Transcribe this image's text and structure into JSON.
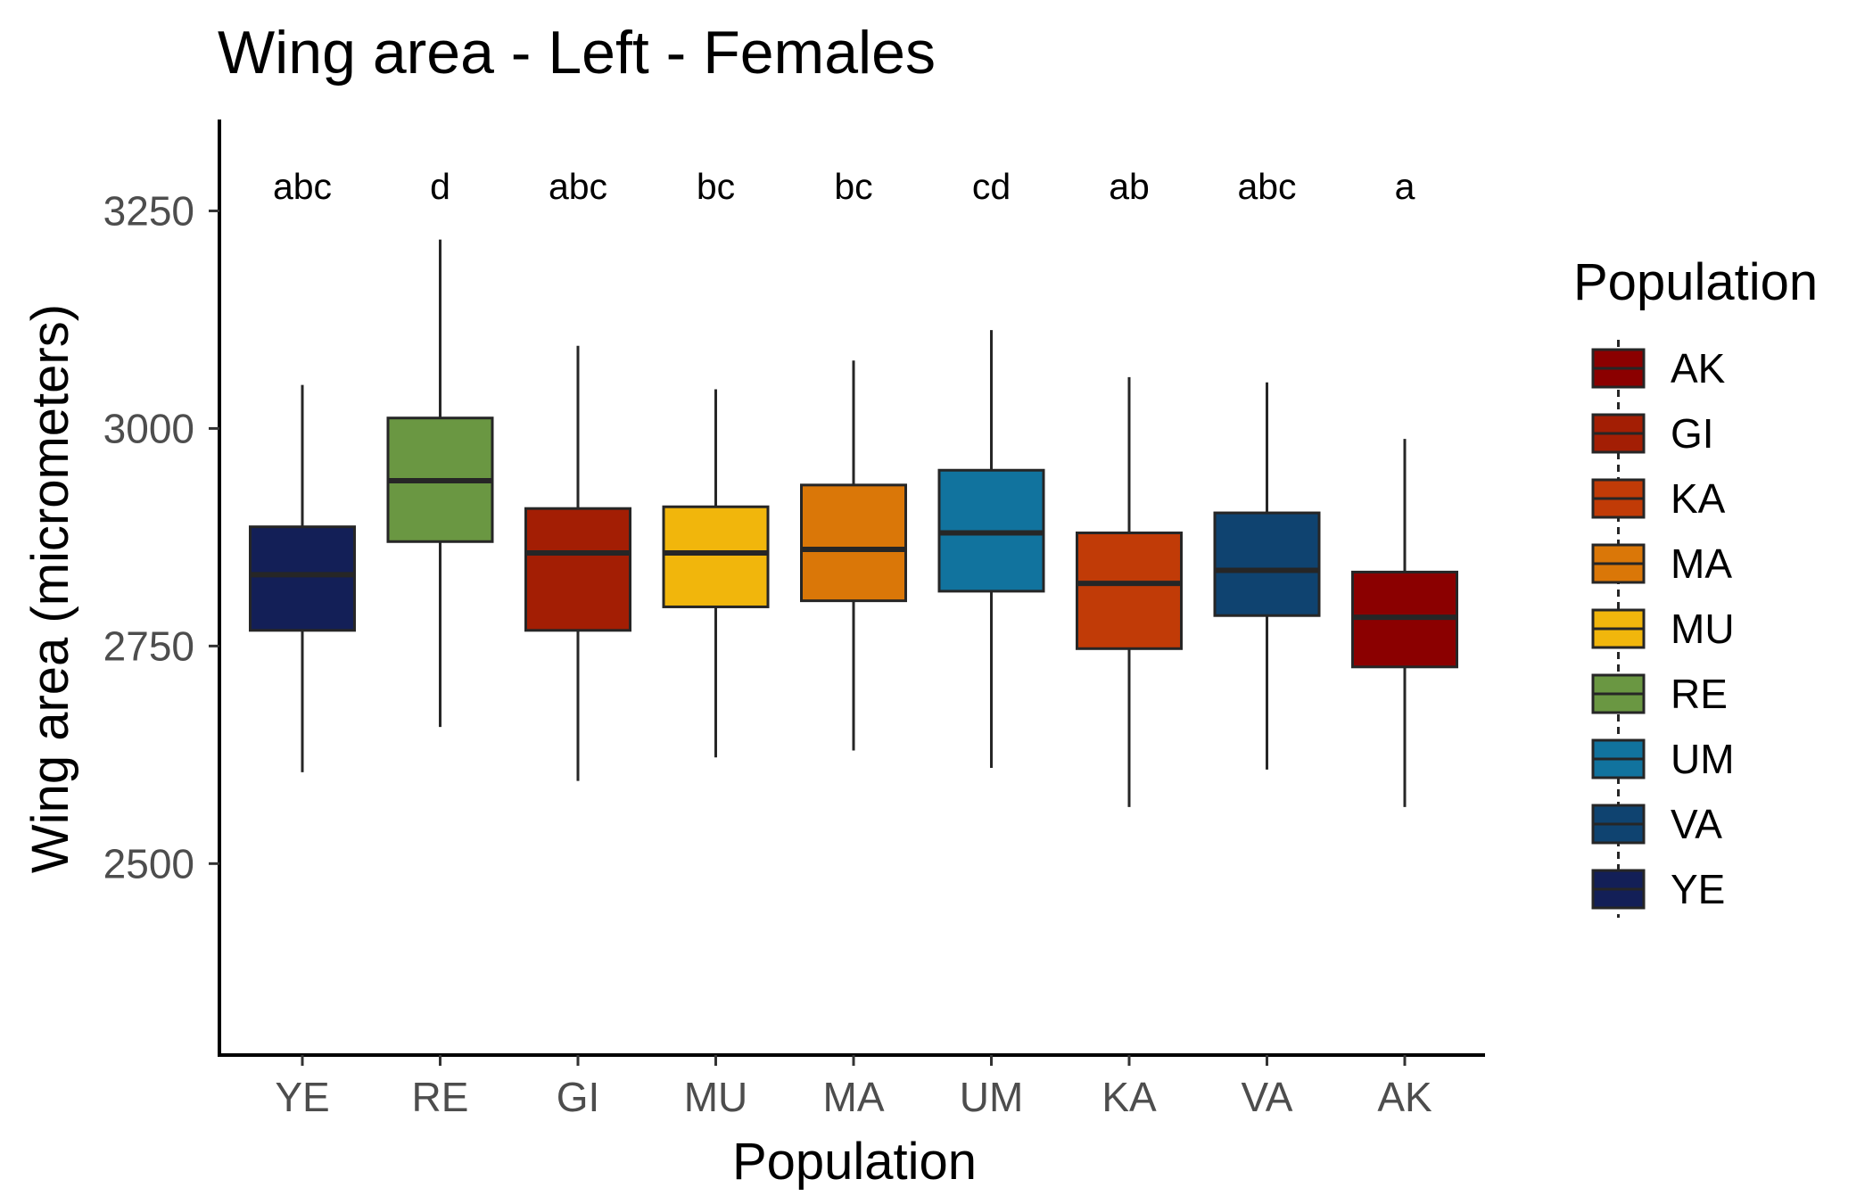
{
  "chart_data": {
    "type": "boxplot",
    "title": "Wing area - Left - Females",
    "xlabel": "Population",
    "ylabel": "Wing area (micrometers)",
    "ylim": [
      2280,
      3355
    ],
    "yticks": [
      2500,
      2750,
      3000,
      3250
    ],
    "ytick_labels": [
      "2500",
      "2750",
      "3000",
      "3250"
    ],
    "grid": false,
    "legend_position": "right",
    "legend_title": "Population",
    "categories": [
      "YE",
      "RE",
      "GI",
      "MU",
      "MA",
      "UM",
      "KA",
      "VA",
      "AK"
    ],
    "groups": [
      {
        "name": "YE",
        "color": "#131F57",
        "whisker_low": 2605,
        "q1": 2768,
        "median": 2832,
        "q3": 2887,
        "whisker_high": 3050,
        "sig_letter": "abc"
      },
      {
        "name": "RE",
        "color": "#6A9742",
        "whisker_low": 2657,
        "q1": 2870,
        "median": 2940,
        "q3": 3012,
        "whisker_high": 3217,
        "sig_letter": "d"
      },
      {
        "name": "GI",
        "color": "#A31E04",
        "whisker_low": 2595,
        "q1": 2768,
        "median": 2857,
        "q3": 2908,
        "whisker_high": 3095,
        "sig_letter": "abc"
      },
      {
        "name": "MU",
        "color": "#F1B60C",
        "whisker_low": 2622,
        "q1": 2795,
        "median": 2857,
        "q3": 2910,
        "whisker_high": 3045,
        "sig_letter": "bc"
      },
      {
        "name": "MA",
        "color": "#DA7708",
        "whisker_low": 2630,
        "q1": 2802,
        "median": 2861,
        "q3": 2935,
        "whisker_high": 3078,
        "sig_letter": "bc"
      },
      {
        "name": "UM",
        "color": "#11739E",
        "whisker_low": 2610,
        "q1": 2813,
        "median": 2880,
        "q3": 2952,
        "whisker_high": 3113,
        "sig_letter": "cd"
      },
      {
        "name": "KA",
        "color": "#C13B07",
        "whisker_low": 2565,
        "q1": 2747,
        "median": 2822,
        "q3": 2880,
        "whisker_high": 3059,
        "sig_letter": "ab"
      },
      {
        "name": "VA",
        "color": "#0F4370",
        "whisker_low": 2608,
        "q1": 2785,
        "median": 2837,
        "q3": 2903,
        "whisker_high": 3053,
        "sig_letter": "abc"
      },
      {
        "name": "AK",
        "color": "#8B0000",
        "whisker_low": 2565,
        "q1": 2726,
        "median": 2783,
        "q3": 2835,
        "whisker_high": 2988,
        "sig_letter": "a"
      }
    ],
    "legend_order": [
      "AK",
      "GI",
      "KA",
      "MA",
      "MU",
      "RE",
      "UM",
      "VA",
      "YE"
    ]
  }
}
